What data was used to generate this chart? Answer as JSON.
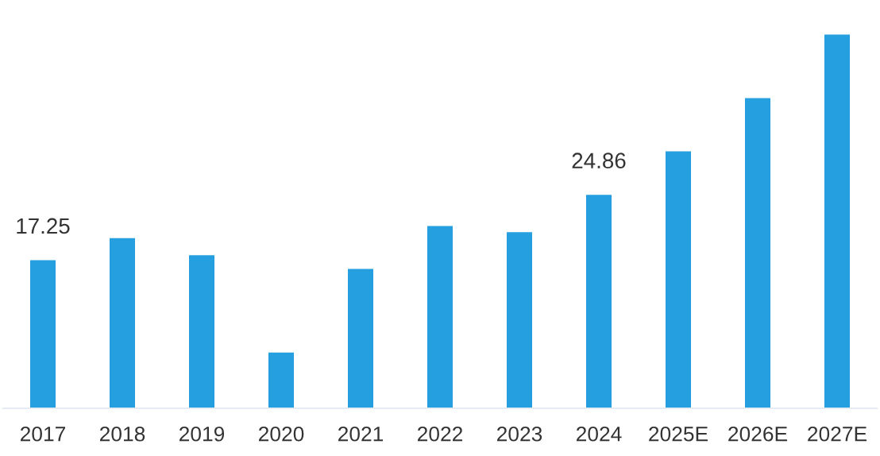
{
  "chart_data": {
    "type": "bar",
    "categories": [
      "2017",
      "2018",
      "2019",
      "2020",
      "2021",
      "2022",
      "2023",
      "2024",
      "2025E",
      "2026E",
      "2027E"
    ],
    "values": [
      17.25,
      19.82,
      17.83,
      6.51,
      16.24,
      21.23,
      20.52,
      24.86,
      29.92,
      36.13,
      43.53
    ],
    "value_labels": [
      "17.25",
      null,
      null,
      null,
      null,
      null,
      null,
      "24.86",
      null,
      null,
      null
    ],
    "color": "#259fe0",
    "grid": false,
    "legend": false
  }
}
